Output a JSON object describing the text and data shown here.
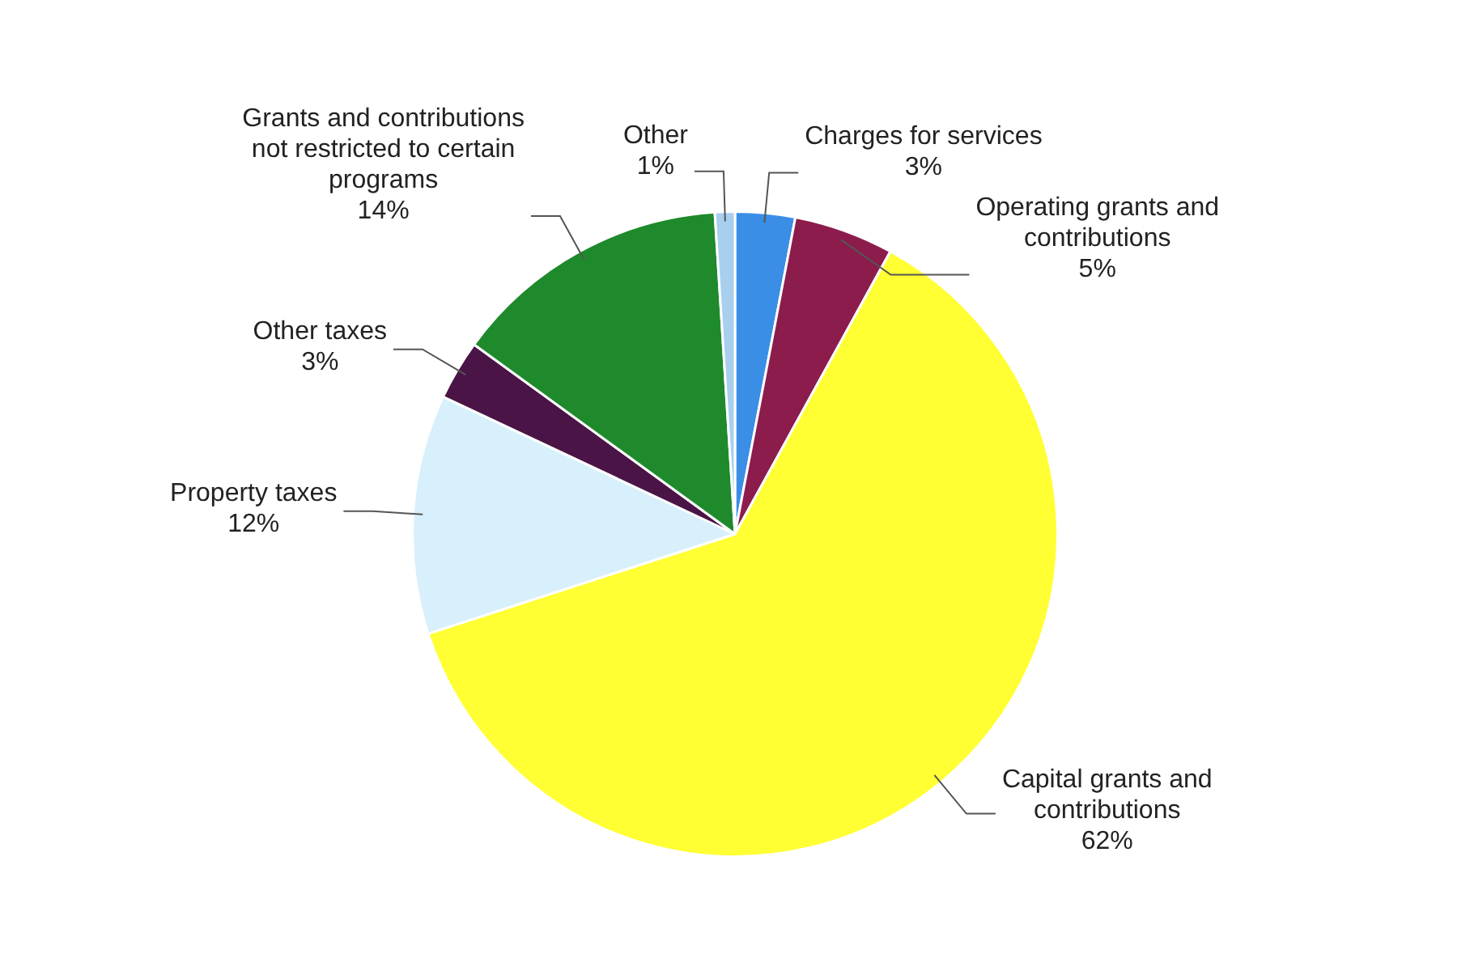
{
  "chart_data": {
    "type": "pie",
    "categories": [
      "Charges for services",
      "Operating grants and contributions",
      "Capital grants and contributions",
      "Property taxes",
      "Other taxes",
      "Grants and contributions not restricted to certain programs",
      "Other"
    ],
    "values": [
      3,
      5,
      62,
      12,
      3,
      14,
      1
    ],
    "value_labels": [
      "3%",
      "5%",
      "62%",
      "12%",
      "3%",
      "14%",
      "1%"
    ],
    "colors": [
      "#3a8ee6",
      "#8c1c4c",
      "#ffff33",
      "#d8f0fb",
      "#4a1446",
      "#1e8a2c",
      "#a9cfee"
    ],
    "legend": false
  }
}
